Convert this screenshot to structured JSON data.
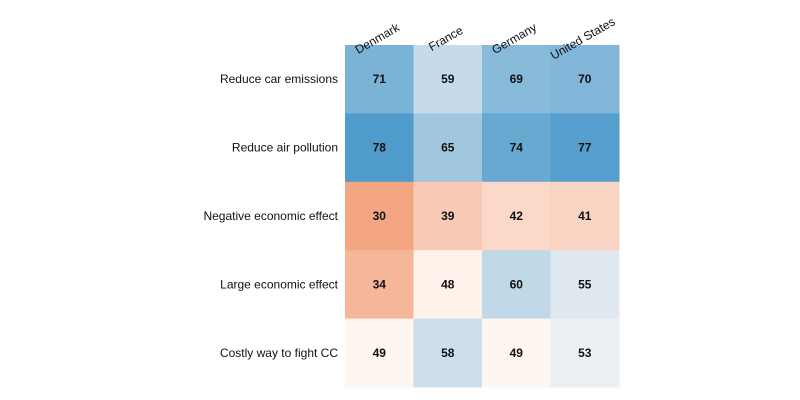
{
  "chart_data": {
    "type": "heatmap",
    "columns": [
      "Denmark",
      "France",
      "Germany",
      "United States"
    ],
    "rows": [
      "Reduce car emissions",
      "Reduce air pollution",
      "Negative economic effect",
      "Large economic effect",
      "Costly way to fight CC"
    ],
    "values": [
      [
        71,
        59,
        69,
        70
      ],
      [
        78,
        65,
        74,
        77
      ],
      [
        30,
        39,
        42,
        41
      ],
      [
        34,
        48,
        60,
        55
      ],
      [
        49,
        58,
        49,
        53
      ]
    ],
    "colors": {
      "low": "#f4a582",
      "mid": "#fffaf7",
      "high": "#4f9bcb"
    },
    "color_midpoint": 50,
    "legend": "none",
    "grid": false
  }
}
